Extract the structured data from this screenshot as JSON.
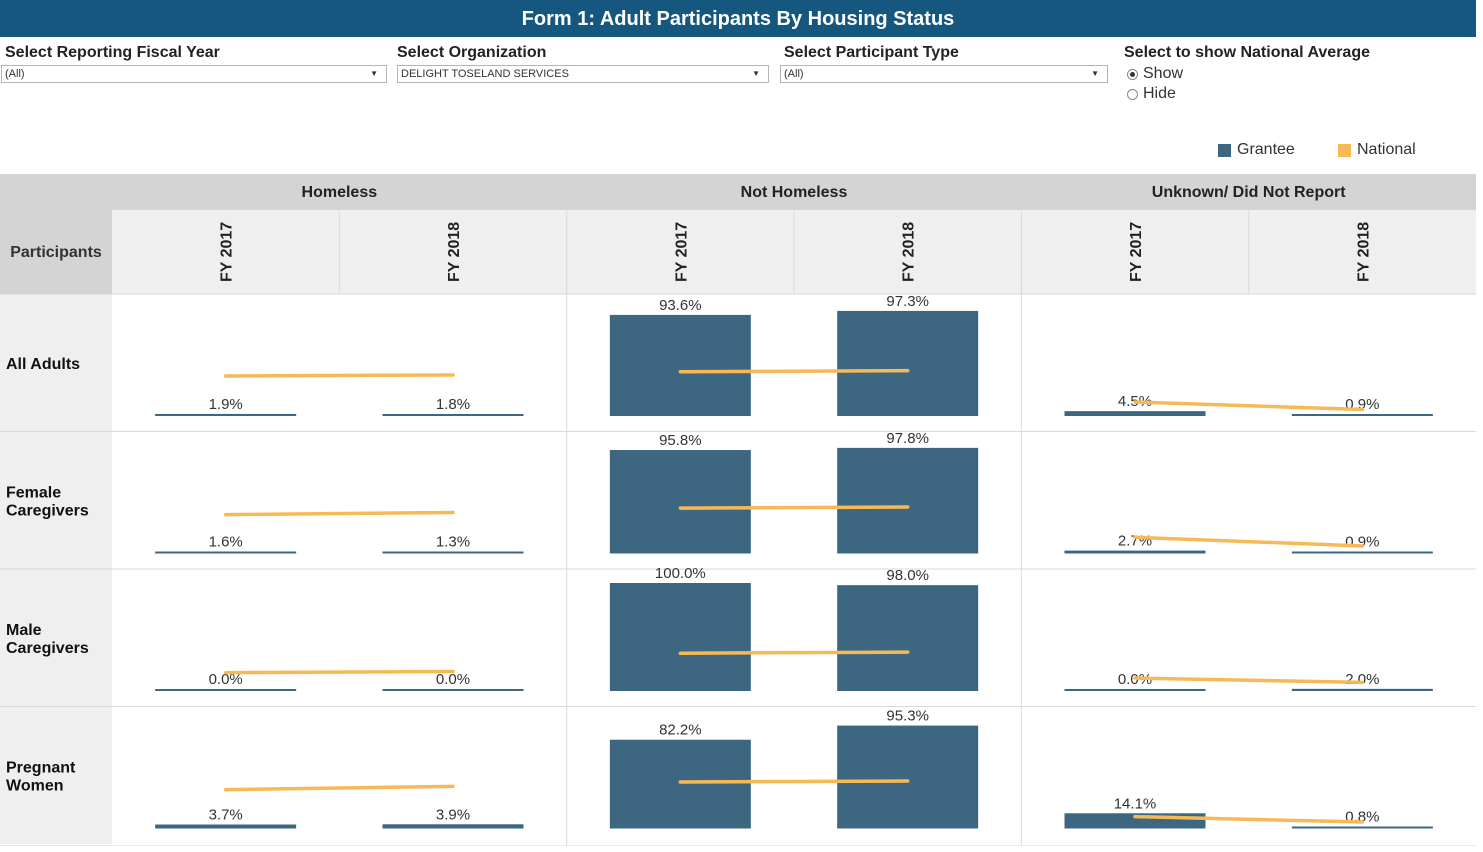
{
  "title": "Form 1: Adult Participants By Housing Status",
  "filters": {
    "fiscal_year": {
      "label": "Select Reporting Fiscal Year",
      "value": "(All)"
    },
    "organization": {
      "label": "Select Organization",
      "value": "DELIGHT TOSELAND SERVICES"
    },
    "participant_type": {
      "label": "Select Participant Type",
      "value": "(All)"
    },
    "national_average": {
      "label": "Select to show National Average",
      "options": [
        "Show",
        "Hide"
      ],
      "selected": "Show"
    }
  },
  "legend": {
    "grantee": "Grantee",
    "national": "National"
  },
  "colors": {
    "grantee": "#3d6780",
    "national": "#f7b955",
    "header_bg": "#d4d4d4",
    "subheader_bg": "#efefef",
    "title_bg": "#15577f"
  },
  "chart_data": {
    "type": "bar",
    "row_header": "Participants",
    "groups": [
      "Homeless",
      "Not Homeless",
      "Unknown/ Did Not Report"
    ],
    "years": [
      "FY 2017",
      "FY 2018"
    ],
    "rows": [
      {
        "name": "All Adults",
        "grantee": [
          [
            1.9,
            1.8
          ],
          [
            93.6,
            97.3
          ],
          [
            4.5,
            0.9
          ]
        ],
        "grantee_labels": [
          [
            "1.9%",
            "1.8%"
          ],
          [
            "93.6%",
            "97.3%"
          ],
          [
            "4.5%",
            "0.9%"
          ]
        ],
        "national": [
          [
            37,
            38
          ],
          [
            41,
            42
          ],
          [
            13,
            6
          ]
        ]
      },
      {
        "name": "Female Caregivers",
        "grantee": [
          [
            1.6,
            1.3
          ],
          [
            95.8,
            97.8
          ],
          [
            2.7,
            0.9
          ]
        ],
        "grantee_labels": [
          [
            "1.6%",
            "1.3%"
          ],
          [
            "95.8%",
            "97.8%"
          ],
          [
            "2.7%",
            "0.9%"
          ]
        ],
        "national": [
          [
            36,
            38
          ],
          [
            42,
            43
          ],
          [
            15,
            7
          ]
        ]
      },
      {
        "name": "Male Caregivers",
        "grantee": [
          [
            0.0,
            0.0
          ],
          [
            100.0,
            98.0
          ],
          [
            0.0,
            2.0
          ]
        ],
        "grantee_labels": [
          [
            "0.0%",
            "0.0%"
          ],
          [
            "100.0%",
            "98.0%"
          ],
          [
            "0.0%",
            "2.0%"
          ]
        ],
        "national": [
          [
            17,
            18
          ],
          [
            35,
            36
          ],
          [
            12,
            8
          ]
        ]
      },
      {
        "name": "Pregnant Women",
        "grantee": [
          [
            3.7,
            3.9
          ],
          [
            82.2,
            95.3
          ],
          [
            14.1,
            0.8
          ]
        ],
        "grantee_labels": [
          [
            "3.7%",
            "3.9%"
          ],
          [
            "82.2%",
            "95.3%"
          ],
          [
            "14.1%",
            "0.8%"
          ]
        ],
        "national": [
          [
            36,
            39
          ],
          [
            43,
            44
          ],
          [
            11,
            6
          ]
        ]
      }
    ],
    "ylim": [
      0,
      100
    ]
  }
}
